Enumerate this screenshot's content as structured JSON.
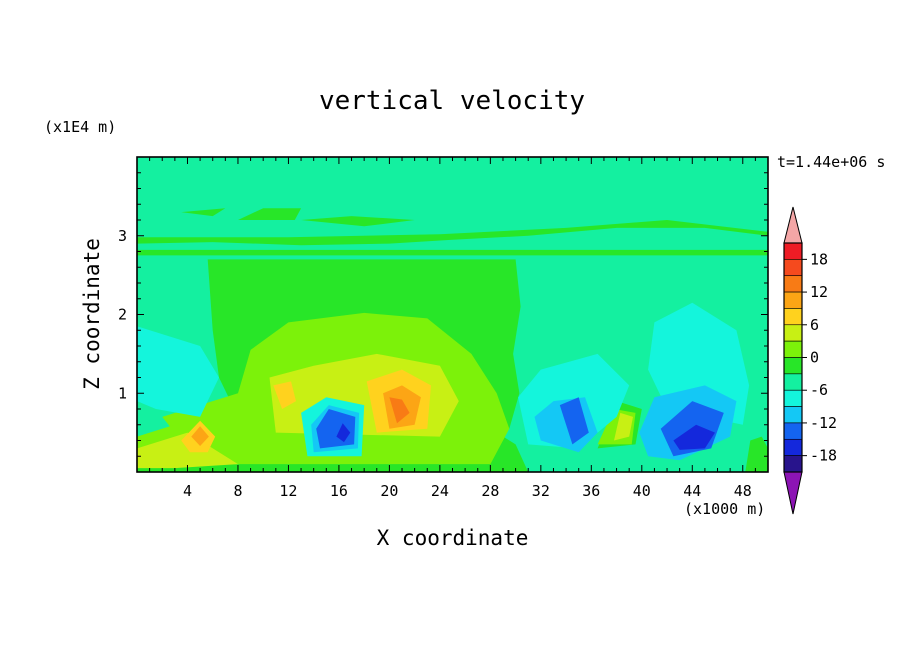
{
  "chart_data": {
    "type": "heatmap",
    "title": "vertical velocity",
    "xlabel": "X coordinate",
    "ylabel": "Z coordinate",
    "x_units": "(x1000 m)",
    "z_units": "(x1E4 m)",
    "time_label": "t=1.44e+06 s",
    "xlim": [
      0,
      50
    ],
    "ylim": [
      0,
      4
    ],
    "x_ticks": [
      4,
      8,
      12,
      16,
      20,
      24,
      28,
      32,
      36,
      40,
      44,
      48
    ],
    "y_ticks": [
      1,
      2,
      3
    ],
    "colorbar": {
      "ticks": [
        18,
        12,
        6,
        0,
        -6,
        -12,
        -18
      ],
      "levels": [
        {
          "lo": 21,
          "color": "#f4a6a6"
        },
        {
          "lo": 18,
          "hi": 21,
          "color": "#ee1c25"
        },
        {
          "lo": 15,
          "hi": 18,
          "color": "#f54a1e"
        },
        {
          "lo": 12,
          "hi": 15,
          "color": "#f87b15"
        },
        {
          "lo": 9,
          "hi": 12,
          "color": "#fca515"
        },
        {
          "lo": 6,
          "hi": 9,
          "color": "#ffd21e"
        },
        {
          "lo": 3,
          "hi": 6,
          "color": "#c8f014"
        },
        {
          "lo": 0,
          "hi": 3,
          "color": "#7cf20a"
        },
        {
          "lo": -3,
          "hi": 0,
          "color": "#28e628"
        },
        {
          "lo": -6,
          "hi": -3,
          "color": "#14f0a0"
        },
        {
          "lo": -9,
          "hi": -6,
          "color": "#14f5dc"
        },
        {
          "lo": -12,
          "hi": -9,
          "color": "#14c8f5"
        },
        {
          "lo": -15,
          "hi": -12,
          "color": "#1464f0"
        },
        {
          "lo": -18,
          "hi": -15,
          "color": "#1428dc"
        },
        {
          "lo": -21,
          "hi": -18,
          "color": "#28148c"
        },
        {
          "hi": -21,
          "color": "#8c14b4"
        }
      ]
    },
    "field": {
      "background": "#14f0a0",
      "regions": [
        {
          "level": "green",
          "color": "#28e628",
          "pts": [
            [
              5.6,
              2.7
            ],
            [
              30,
              2.7
            ],
            [
              30.4,
              2.1
            ],
            [
              29.8,
              1.5
            ],
            [
              30.3,
              1
            ],
            [
              29.5,
              0.55
            ],
            [
              28,
              0.5
            ],
            [
              8,
              0.7
            ],
            [
              6.5,
              1.2
            ],
            [
              6,
              1.8
            ]
          ]
        },
        {
          "level": "green",
          "color": "#28e628",
          "pts": [
            [
              0,
              2.75
            ],
            [
              50,
              2.75
            ],
            [
              50,
              2.82
            ],
            [
              0,
              2.82
            ]
          ]
        },
        {
          "level": "green",
          "color": "#28e628",
          "pts": [
            [
              0,
              2.9
            ],
            [
              6,
              2.92
            ],
            [
              13,
              2.88
            ],
            [
              20,
              2.9
            ],
            [
              25,
              2.95
            ],
            [
              31,
              3.0
            ],
            [
              38,
              3.1
            ],
            [
              45,
              3.1
            ],
            [
              50,
              3.0
            ],
            [
              50,
              3.05
            ],
            [
              42,
              3.2
            ],
            [
              34,
              3.1
            ],
            [
              24,
              3.02
            ],
            [
              12,
              2.98
            ],
            [
              0,
              2.98
            ]
          ]
        },
        {
          "level": "green",
          "color": "#28e628",
          "pts": [
            [
              3.5,
              3.3
            ],
            [
              7,
              3.35
            ],
            [
              6,
              3.25
            ]
          ]
        },
        {
          "level": "green",
          "color": "#28e628",
          "pts": [
            [
              8,
              3.2
            ],
            [
              10,
              3.35
            ],
            [
              13,
              3.35
            ],
            [
              12.5,
              3.2
            ]
          ]
        },
        {
          "level": "green",
          "color": "#28e628",
          "pts": [
            [
              13,
              3.2
            ],
            [
              17,
              3.25
            ],
            [
              22,
              3.2
            ],
            [
              18,
              3.12
            ]
          ]
        },
        {
          "level": "green",
          "color": "#28e628",
          "pts": [
            [
              0,
              0.25
            ],
            [
              7,
              0.85
            ],
            [
              12,
              0.95
            ],
            [
              26,
              0.75
            ],
            [
              30,
              0.35
            ],
            [
              31,
              0
            ],
            [
              0,
              0
            ]
          ]
        },
        {
          "level": "green",
          "color": "#28e628",
          "pts": [
            [
              36.5,
              0.3
            ],
            [
              38,
              0.9
            ],
            [
              40,
              0.8
            ],
            [
              39.5,
              0.35
            ]
          ]
        },
        {
          "level": "green",
          "color": "#28e628",
          "pts": [
            [
              48.2,
              0
            ],
            [
              48.6,
              0.4
            ],
            [
              49.5,
              0.45
            ],
            [
              50,
              0.3
            ],
            [
              50,
              0
            ]
          ]
        },
        {
          "level": "yellow-green",
          "color": "#7cf20a",
          "pts": [
            [
              8,
              1.0
            ],
            [
              9,
              1.55
            ],
            [
              12,
              1.9
            ],
            [
              18,
              2.02
            ],
            [
              23,
              1.95
            ],
            [
              26.5,
              1.5
            ],
            [
              28.5,
              1.0
            ],
            [
              29.5,
              0.55
            ],
            [
              28,
              0.1
            ],
            [
              5,
              0.1
            ],
            [
              2,
              0.7
            ],
            [
              6,
              0.9
            ]
          ]
        },
        {
          "level": "yellow-green",
          "color": "#7cf20a",
          "pts": [
            [
              0,
              0.45
            ],
            [
              4,
              0.65
            ],
            [
              5.5,
              0.3
            ],
            [
              3,
              0.1
            ],
            [
              0,
              0.1
            ]
          ]
        },
        {
          "level": "yellow-green",
          "color": "#7cf20a",
          "pts": [
            [
              36.5,
              0.35
            ],
            [
              37.8,
              0.8
            ],
            [
              39.5,
              0.75
            ],
            [
              39.2,
              0.35
            ]
          ]
        },
        {
          "level": "yellow",
          "color": "#c8f014",
          "pts": [
            [
              10.5,
              1.2
            ],
            [
              14,
              1.35
            ],
            [
              19,
              1.5
            ],
            [
              24,
              1.35
            ],
            [
              25.5,
              0.9
            ],
            [
              24,
              0.45
            ],
            [
              11,
              0.5
            ]
          ]
        },
        {
          "level": "yellow",
          "color": "#c8f014",
          "pts": [
            [
              0,
              0.3
            ],
            [
              4,
              0.5
            ],
            [
              6.5,
              0.25
            ],
            [
              8,
              0.1
            ],
            [
              3,
              0.05
            ],
            [
              0,
              0.05
            ]
          ]
        },
        {
          "level": "yellow",
          "color": "#c8f014",
          "pts": [
            [
              37.8,
              0.4
            ],
            [
              38.3,
              0.75
            ],
            [
              39.3,
              0.7
            ],
            [
              39,
              0.45
            ]
          ]
        },
        {
          "level": "orange-light",
          "color": "#ffd21e",
          "pts": [
            [
              18.2,
              1.15
            ],
            [
              21,
              1.3
            ],
            [
              23.3,
              1.1
            ],
            [
              23,
              0.55
            ],
            [
              19,
              0.5
            ]
          ]
        },
        {
          "level": "orange-light",
          "color": "#ffd21e",
          "pts": [
            [
              3.5,
              0.4
            ],
            [
              5,
              0.65
            ],
            [
              6.2,
              0.45
            ],
            [
              5.6,
              0.25
            ],
            [
              4.2,
              0.25
            ]
          ]
        },
        {
          "level": "orange-light",
          "color": "#ffd21e",
          "pts": [
            [
              10.8,
              1.1
            ],
            [
              12.2,
              1.15
            ],
            [
              12.6,
              0.9
            ],
            [
              11.5,
              0.8
            ]
          ]
        },
        {
          "level": "orange",
          "color": "#fca515",
          "pts": [
            [
              19.5,
              1.0
            ],
            [
              21,
              1.1
            ],
            [
              22.5,
              0.95
            ],
            [
              22,
              0.6
            ],
            [
              20,
              0.55
            ]
          ]
        },
        {
          "level": "orange",
          "color": "#fca515",
          "pts": [
            [
              4.3,
              0.45
            ],
            [
              5,
              0.58
            ],
            [
              5.7,
              0.45
            ],
            [
              5,
              0.33
            ]
          ]
        },
        {
          "level": "orange-dark",
          "color": "#f87b15",
          "pts": [
            [
              20,
              0.95
            ],
            [
              21,
              0.92
            ],
            [
              21.6,
              0.75
            ],
            [
              20.6,
              0.62
            ]
          ]
        },
        {
          "level": "blue-weak",
          "color": "#14f5dc",
          "pts": [
            [
              0,
              1.85
            ],
            [
              5,
              1.6
            ],
            [
              6.5,
              1.2
            ],
            [
              5,
              0.7
            ],
            [
              1.5,
              0.8
            ],
            [
              0,
              0.9
            ]
          ]
        },
        {
          "level": "blue-weak",
          "color": "#14f5dc",
          "pts": [
            [
              30.2,
              0.95
            ],
            [
              32,
              1.3
            ],
            [
              36.5,
              1.5
            ],
            [
              39,
              1.1
            ],
            [
              38,
              0.7
            ],
            [
              35,
              0.3
            ],
            [
              31,
              0.35
            ]
          ]
        },
        {
          "level": "blue-weak",
          "color": "#14f5dc",
          "pts": [
            [
              40.5,
              1.3
            ],
            [
              41,
              1.9
            ],
            [
              44,
              2.15
            ],
            [
              47.5,
              1.8
            ],
            [
              48.5,
              1.1
            ],
            [
              48,
              0.6
            ],
            [
              42,
              0.8
            ]
          ]
        },
        {
          "level": "blue-weak",
          "color": "#14f5dc",
          "pts": [
            [
              13,
              0.75
            ],
            [
              15,
              0.95
            ],
            [
              18,
              0.85
            ],
            [
              17.8,
              0.2
            ],
            [
              13.5,
              0.2
            ]
          ]
        },
        {
          "level": "blue-mid",
          "color": "#14c8f5",
          "pts": [
            [
              31.5,
              0.7
            ],
            [
              33,
              0.9
            ],
            [
              35.5,
              0.95
            ],
            [
              36.5,
              0.5
            ],
            [
              35,
              0.25
            ],
            [
              32,
              0.4
            ]
          ]
        },
        {
          "level": "blue-mid",
          "color": "#14c8f5",
          "pts": [
            [
              39.8,
              0.5
            ],
            [
              41,
              0.95
            ],
            [
              45,
              1.1
            ],
            [
              47.5,
              0.9
            ],
            [
              47,
              0.45
            ],
            [
              43,
              0.15
            ],
            [
              40.5,
              0.2
            ]
          ]
        },
        {
          "level": "blue-mid",
          "color": "#14c8f5",
          "pts": [
            [
              13.8,
              0.6
            ],
            [
              15.2,
              0.85
            ],
            [
              17.6,
              0.75
            ],
            [
              17.5,
              0.3
            ],
            [
              14,
              0.25
            ]
          ]
        },
        {
          "level": "blue",
          "color": "#1464f0",
          "pts": [
            [
              33.5,
              0.85
            ],
            [
              35,
              0.95
            ],
            [
              35.8,
              0.5
            ],
            [
              34.5,
              0.35
            ]
          ]
        },
        {
          "level": "blue",
          "color": "#1464f0",
          "pts": [
            [
              41.5,
              0.55
            ],
            [
              44,
              0.9
            ],
            [
              46.5,
              0.75
            ],
            [
              45.5,
              0.3
            ],
            [
              42.5,
              0.2
            ]
          ]
        },
        {
          "level": "blue",
          "color": "#1464f0",
          "pts": [
            [
              14.2,
              0.55
            ],
            [
              15.2,
              0.8
            ],
            [
              17.3,
              0.7
            ],
            [
              17.2,
              0.35
            ],
            [
              14.5,
              0.3
            ]
          ]
        },
        {
          "level": "blue-dark",
          "color": "#1428dc",
          "pts": [
            [
              42.5,
              0.4
            ],
            [
              44.3,
              0.6
            ],
            [
              45.8,
              0.5
            ],
            [
              45,
              0.3
            ],
            [
              43,
              0.28
            ]
          ]
        },
        {
          "level": "blue-dark",
          "color": "#1428dc",
          "pts": [
            [
              15.8,
              0.45
            ],
            [
              16.3,
              0.62
            ],
            [
              16.9,
              0.5
            ],
            [
              16.4,
              0.38
            ]
          ]
        }
      ]
    }
  }
}
